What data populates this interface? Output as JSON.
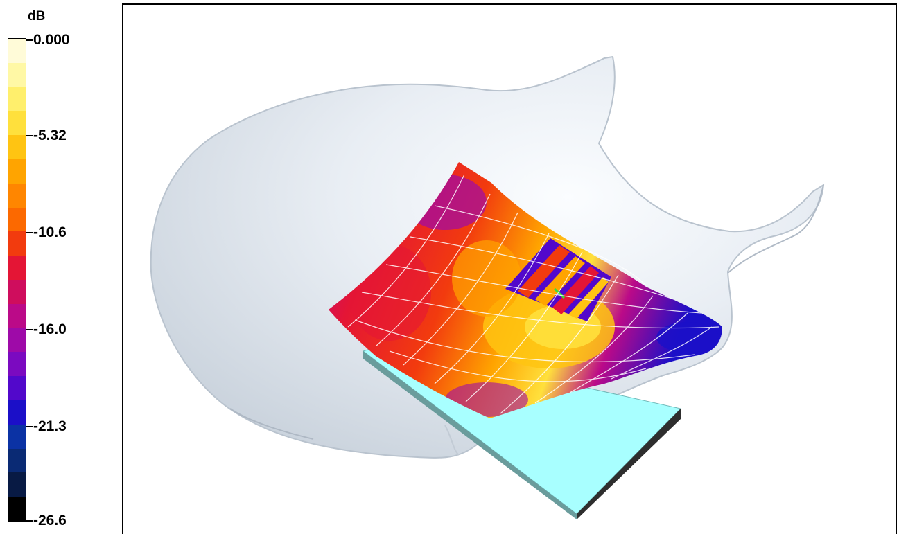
{
  "colorbar": {
    "unit": "dB",
    "ticks": [
      "0.000",
      "-5.32",
      "-10.6",
      "-16.0",
      "-21.3",
      "-26.6"
    ],
    "tick_values": [
      0.0,
      -5.32,
      -10.6,
      -16.0,
      -21.3,
      -26.6
    ],
    "range": [
      -26.6,
      0.0
    ],
    "colors": [
      "#fffbd8",
      "#fff8a5",
      "#ffef6c",
      "#ffe03c",
      "#ffc412",
      "#ffa400",
      "#ff8600",
      "#fc6900",
      "#f23b0e",
      "#e41535",
      "#cf0d5d",
      "#bb0a88",
      "#9e0aa8",
      "#7b0ac0",
      "#5208cb",
      "#1b0fc8",
      "#0b32a4",
      "#0a2a74",
      "#081a44",
      "#000000"
    ]
  },
  "viewport": {
    "name": "3D field view",
    "colors": {
      "phantom": "#dfe6ee",
      "phantom_edge": "#b9c3ce",
      "antenna_top": "#a8ffff",
      "antenna_side": "#2e2e2e",
      "grid_lines": "#ffffff"
    }
  }
}
